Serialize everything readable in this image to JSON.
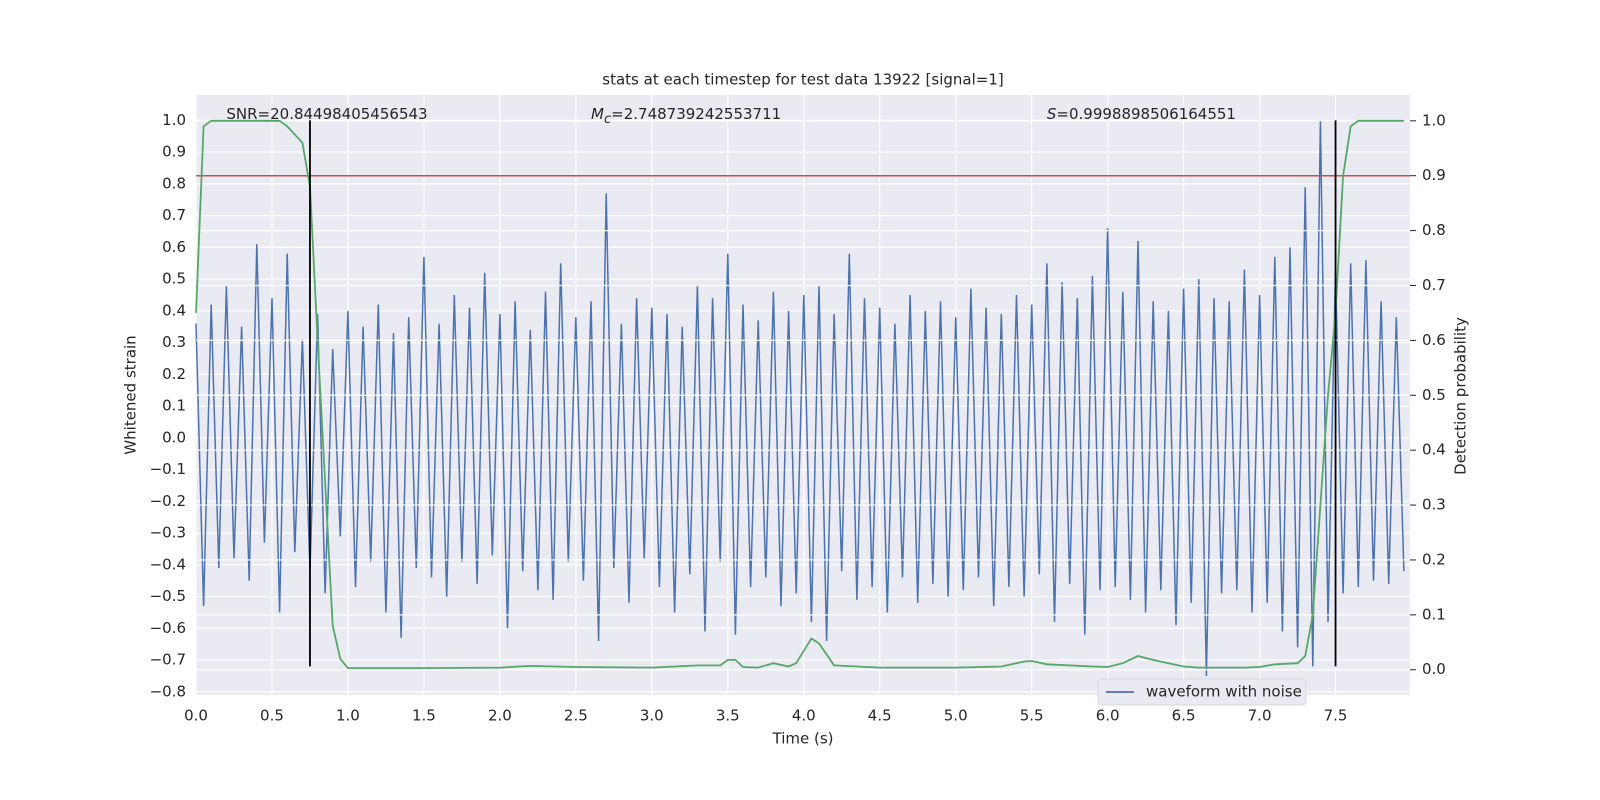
{
  "chart_data": {
    "type": "line",
    "title": "stats at each timestep for test data 13922 [signal=1]",
    "xlabel": "Time (s)",
    "ylabel": "Whitened strain",
    "y2label": "Detection probability",
    "xlim": [
      0,
      7.99
    ],
    "ylim": [
      -0.81,
      1.08
    ],
    "y2lim": [
      -0.046,
      1.047
    ],
    "xticks": [
      {
        "value": 0,
        "label": "0.0"
      },
      0.5,
      {
        "value": 1,
        "label": "1.0"
      },
      1.5,
      {
        "value": 2,
        "label": "2.0"
      },
      2.5,
      {
        "value": 3,
        "label": "3.0"
      },
      3.5,
      {
        "value": 4,
        "label": "4.0"
      },
      4.5,
      {
        "value": 5,
        "label": "5.0"
      },
      5.5,
      {
        "value": 6,
        "label": "6.0"
      },
      6.5,
      {
        "value": 7,
        "label": "7.0"
      },
      7.5
    ],
    "yticks": [
      {
        "value": -0.8,
        "label": "−0.8"
      },
      {
        "value": -0.7,
        "label": "−0.7"
      },
      {
        "value": -0.6,
        "label": "−0.6"
      },
      {
        "value": -0.5,
        "label": "−0.5"
      },
      {
        "value": -0.4,
        "label": "−0.4"
      },
      {
        "value": -0.3,
        "label": "−0.3"
      },
      {
        "value": -0.2,
        "label": "−0.2"
      },
      {
        "value": -0.1,
        "label": "−0.1"
      },
      {
        "value": 0,
        "label": "0.0"
      },
      0.1,
      0.2,
      0.3,
      0.4,
      0.5,
      0.6,
      0.7,
      0.8,
      0.9,
      {
        "value": 1,
        "label": "1.0"
      }
    ],
    "y2ticks": [
      {
        "value": 0,
        "label": "0.0"
      },
      0.1,
      0.2,
      0.3,
      0.4,
      0.5,
      0.6,
      0.7,
      0.8,
      0.9,
      {
        "value": 1,
        "label": "1.0"
      }
    ],
    "grid": true,
    "legend": "lower right",
    "series": [
      {
        "name": "waveform with noise",
        "color": "#4c72b0",
        "x": [
          0,
          0.05,
          0.1,
          0.15,
          0.2,
          0.25,
          0.3,
          0.35,
          0.4,
          0.45,
          0.5,
          0.55,
          0.6,
          0.65,
          0.7,
          0.75,
          0.8,
          0.85,
          0.9,
          0.95,
          1,
          1.05,
          1.1,
          1.15,
          1.2,
          1.25,
          1.3,
          1.35,
          1.4,
          1.45,
          1.5,
          1.55,
          1.6,
          1.65,
          1.7,
          1.75,
          1.8,
          1.85,
          1.9,
          1.95,
          2,
          2.05,
          2.1,
          2.15,
          2.2,
          2.25,
          2.3,
          2.35,
          2.4,
          2.45,
          2.5,
          2.55,
          2.6,
          2.65,
          2.7,
          2.75,
          2.8,
          2.85,
          2.9,
          2.95,
          3,
          3.05,
          3.1,
          3.15,
          3.2,
          3.25,
          3.3,
          3.35,
          3.4,
          3.45,
          3.5,
          3.55,
          3.6,
          3.65,
          3.7,
          3.75,
          3.8,
          3.85,
          3.9,
          3.95,
          4,
          4.05,
          4.1,
          4.15,
          4.2,
          4.25,
          4.3,
          4.35,
          4.4,
          4.45,
          4.5,
          4.55,
          4.6,
          4.65,
          4.7,
          4.75,
          4.8,
          4.85,
          4.9,
          4.95,
          5,
          5.05,
          5.1,
          5.15,
          5.2,
          5.25,
          5.3,
          5.35,
          5.4,
          5.45,
          5.5,
          5.55,
          5.6,
          5.65,
          5.7,
          5.75,
          5.8,
          5.85,
          5.9,
          5.95,
          6,
          6.05,
          6.1,
          6.15,
          6.2,
          6.25,
          6.3,
          6.35,
          6.4,
          6.45,
          6.5,
          6.55,
          6.6,
          6.65,
          6.7,
          6.75,
          6.8,
          6.85,
          6.9,
          6.95,
          7,
          7.05,
          7.1,
          7.15,
          7.2,
          7.25,
          7.3,
          7.35,
          7.4,
          7.45,
          7.5,
          7.55,
          7.6,
          7.65,
          7.7,
          7.75,
          7.8,
          7.85,
          7.9,
          7.95
        ],
        "values": [
          0.36,
          -0.53,
          0.42,
          -0.41,
          0.48,
          -0.38,
          0.35,
          -0.45,
          0.61,
          -0.33,
          0.44,
          -0.55,
          0.58,
          -0.36,
          0.31,
          -0.42,
          0.39,
          -0.49,
          0.28,
          -0.31,
          0.4,
          -0.47,
          0.35,
          -0.39,
          0.42,
          -0.55,
          0.33,
          -0.63,
          0.38,
          -0.41,
          0.57,
          -0.44,
          0.36,
          -0.5,
          0.45,
          -0.39,
          0.41,
          -0.46,
          0.52,
          -0.37,
          0.39,
          -0.6,
          0.43,
          -0.42,
          0.34,
          -0.48,
          0.46,
          -0.51,
          0.55,
          -0.39,
          0.38,
          -0.45,
          0.43,
          -0.64,
          0.77,
          -0.41,
          0.36,
          -0.52,
          0.44,
          -0.38,
          0.41,
          -0.47,
          0.39,
          -0.55,
          0.35,
          -0.43,
          0.48,
          -0.61,
          0.44,
          -0.39,
          0.58,
          -0.62,
          0.42,
          -0.47,
          0.37,
          -0.44,
          0.46,
          -0.53,
          0.4,
          -0.49,
          0.45,
          -0.58,
          0.48,
          -0.64,
          0.39,
          -0.42,
          0.58,
          -0.51,
          0.44,
          -0.47,
          0.41,
          -0.55,
          0.36,
          -0.44,
          0.45,
          -0.52,
          0.4,
          -0.46,
          0.43,
          -0.5,
          0.38,
          -0.48,
          0.47,
          -0.44,
          0.41,
          -0.53,
          0.39,
          -0.47,
          0.45,
          -0.5,
          0.42,
          -0.43,
          0.55,
          -0.58,
          0.49,
          -0.46,
          0.44,
          -0.62,
          0.51,
          -0.48,
          0.66,
          -0.47,
          0.46,
          -0.51,
          0.62,
          -0.55,
          0.43,
          -0.48,
          0.4,
          -0.59,
          0.47,
          -0.52,
          0.5,
          -0.75,
          0.44,
          -0.49,
          0.43,
          -0.48,
          0.53,
          -0.55,
          0.45,
          -0.52,
          0.57,
          -0.61,
          0.6,
          -0.66,
          0.79,
          -0.72,
          1.0,
          -0.58,
          0.53,
          -0.49,
          0.55,
          -0.47,
          0.56,
          -0.45,
          0.43,
          -0.46,
          0.38,
          -0.42
        ]
      },
      {
        "color": "#55a868",
        "axis": "y2",
        "x": [
          0,
          0.05,
          0.1,
          0.2,
          0.4,
          0.55,
          0.6,
          0.7,
          0.75,
          0.8,
          0.9,
          0.95,
          1.0,
          1.5,
          2.0,
          2.2,
          2.5,
          3.0,
          3.3,
          3.45,
          3.5,
          3.55,
          3.6,
          3.7,
          3.8,
          3.9,
          3.95,
          4.05,
          4.1,
          4.2,
          4.5,
          5.0,
          5.3,
          5.45,
          5.5,
          5.6,
          5.9,
          6.0,
          6.1,
          6.2,
          6.3,
          6.4,
          6.5,
          6.6,
          6.9,
          7.0,
          7.1,
          7.25,
          7.3,
          7.35,
          7.4,
          7.45,
          7.5,
          7.55,
          7.6,
          7.65,
          7.95
        ],
        "values": [
          0.65,
          0.99,
          1.0,
          1.0,
          1.0,
          1.0,
          0.99,
          0.96,
          0.88,
          0.6,
          0.08,
          0.02,
          0.003,
          0.003,
          0.004,
          0.007,
          0.005,
          0.004,
          0.008,
          0.008,
          0.018,
          0.018,
          0.005,
          0.004,
          0.012,
          0.006,
          0.012,
          0.057,
          0.048,
          0.008,
          0.004,
          0.004,
          0.006,
          0.015,
          0.016,
          0.01,
          0.006,
          0.005,
          0.012,
          0.025,
          0.018,
          0.012,
          0.006,
          0.004,
          0.004,
          0.005,
          0.01,
          0.012,
          0.025,
          0.1,
          0.3,
          0.5,
          0.65,
          0.9,
          0.99,
          1.0,
          1.0
        ]
      }
    ],
    "vlines": [
      {
        "x": 0.75,
        "ymin": -0.72,
        "ymax": 1.0,
        "color": "#000000"
      },
      {
        "x": 7.5,
        "ymin": -0.72,
        "ymax": 1.0,
        "color": "#000000"
      }
    ],
    "hlines": [
      {
        "y": 0.9,
        "axis": "y2",
        "color": "#c44e52"
      }
    ],
    "annotations": [
      {
        "x": 0.2,
        "text": "SNR=20.84498405456543"
      },
      {
        "x": 2.6,
        "symbol": "M",
        "subscript": "c",
        "text": "=2.748739242553711"
      },
      {
        "x": 5.6,
        "symbol": "S",
        "text": "=0.9998898506164551"
      }
    ]
  }
}
